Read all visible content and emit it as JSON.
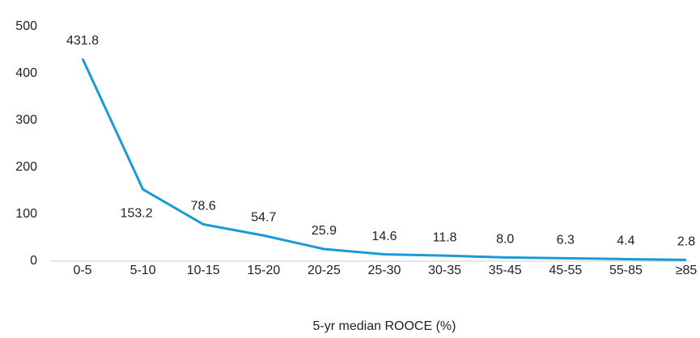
{
  "chart_data": {
    "type": "line",
    "x_label": "5-yr median ROOCE (%)",
    "categories": [
      "0-5",
      "5-10",
      "10-15",
      "15-20",
      "20-25",
      "25-30",
      "30-35",
      "35-45",
      "45-55",
      "55-85",
      "≥85"
    ],
    "series": [
      {
        "name": "ROOCE",
        "color": "#1a9ad6",
        "values": [
          431.8,
          153.2,
          78.6,
          54.7,
          25.9,
          14.6,
          11.8,
          8.0,
          6.3,
          4.4,
          2.8
        ],
        "value_labels": [
          "431.8",
          "153.2",
          "78.6",
          "54.7",
          "25.9",
          "14.6",
          "11.8",
          "8.0",
          "6.3",
          "4.4",
          "2.8"
        ]
      }
    ],
    "ylim": [
      0,
      500
    ],
    "yticks": [
      0,
      100,
      200,
      300,
      400,
      500
    ],
    "grid": false
  }
}
